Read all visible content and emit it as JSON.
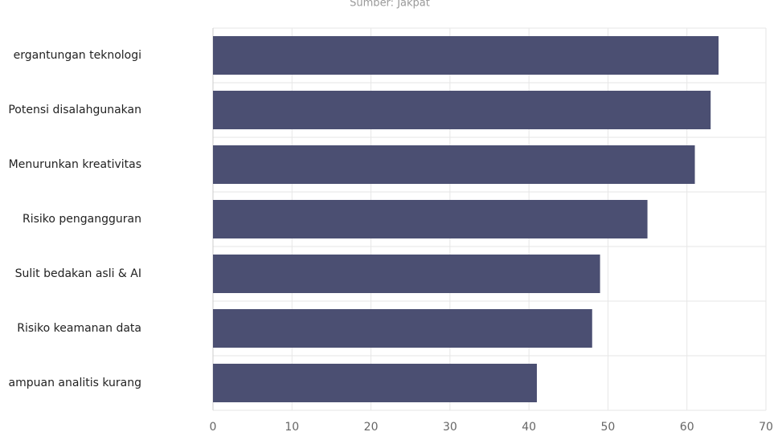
{
  "chart_data": {
    "type": "barh",
    "subtitle": "Sumber: Jakpat",
    "categories": [
      "ergantungan teknologi",
      "Potensi disalahgunakan",
      "Menurunkan kreativitas",
      "Risiko pengangguran",
      "Sulit bedakan asli & AI",
      "Risiko keamanan data",
      "ampuan analitis kurang"
    ],
    "values": [
      64,
      63,
      61,
      55,
      49,
      48,
      41
    ],
    "color": "#4b4f72",
    "xlim": [
      0,
      70
    ],
    "xticks": [
      0,
      10,
      20,
      30,
      40,
      50,
      60,
      70
    ],
    "grid": true
  }
}
